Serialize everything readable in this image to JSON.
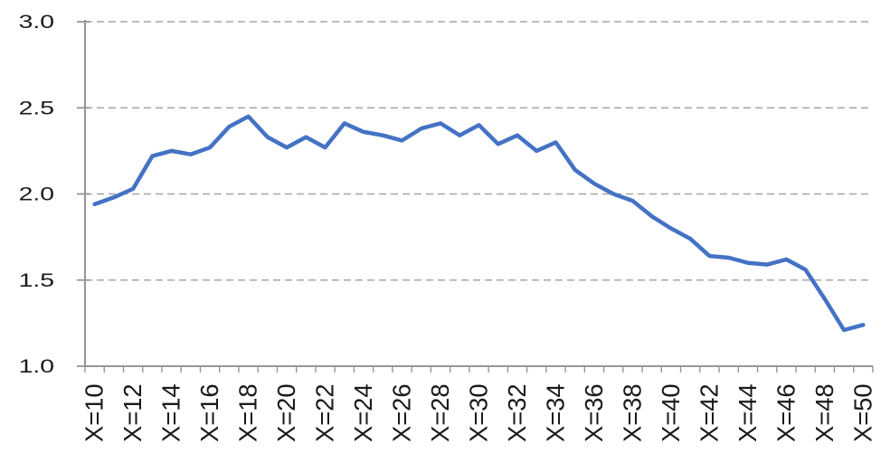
{
  "chart_data": {
    "type": "line",
    "title": "",
    "xlabel": "",
    "ylabel": "",
    "x": [
      10,
      11,
      12,
      13,
      14,
      15,
      16,
      17,
      18,
      19,
      20,
      21,
      22,
      23,
      24,
      25,
      26,
      27,
      28,
      29,
      30,
      31,
      32,
      33,
      34,
      35,
      36,
      37,
      38,
      39,
      40,
      41,
      42,
      43,
      44,
      45,
      46,
      47,
      48,
      49,
      50
    ],
    "values": [
      1.94,
      1.98,
      2.03,
      2.22,
      2.25,
      2.23,
      2.27,
      2.39,
      2.45,
      2.33,
      2.27,
      2.33,
      2.27,
      2.41,
      2.36,
      2.34,
      2.31,
      2.38,
      2.41,
      2.34,
      2.4,
      2.29,
      2.34,
      2.25,
      2.3,
      2.14,
      2.06,
      2.0,
      1.96,
      1.87,
      1.8,
      1.74,
      1.64,
      1.63,
      1.6,
      1.59,
      1.62,
      1.56,
      1.39,
      1.21,
      1.24
    ],
    "x_tick_labels": [
      "X=10",
      "X=12",
      "X=14",
      "X=16",
      "X=18",
      "X=20",
      "X=22",
      "X=24",
      "X=26",
      "X=28",
      "X=30",
      "X=32",
      "X=34",
      "X=36",
      "X=38",
      "X=40",
      "X=42",
      "X=44",
      "X=46",
      "X=48",
      "X=50"
    ],
    "x_minor_tick_every": 1,
    "yticks": [
      1.0,
      1.5,
      2.0,
      2.5,
      3.0
    ],
    "ytick_labels": [
      "1.0",
      "1.5",
      "2.0",
      "2.5",
      "3.0"
    ],
    "ylim": [
      1.0,
      3.0
    ],
    "grid": "horizontal-dashed",
    "legend": "none",
    "colors": {
      "line": "#4472C4",
      "gridline": "#a6a6a6",
      "axis": "#969696",
      "label": "#1a1a1a",
      "background": "#ffffff"
    }
  }
}
